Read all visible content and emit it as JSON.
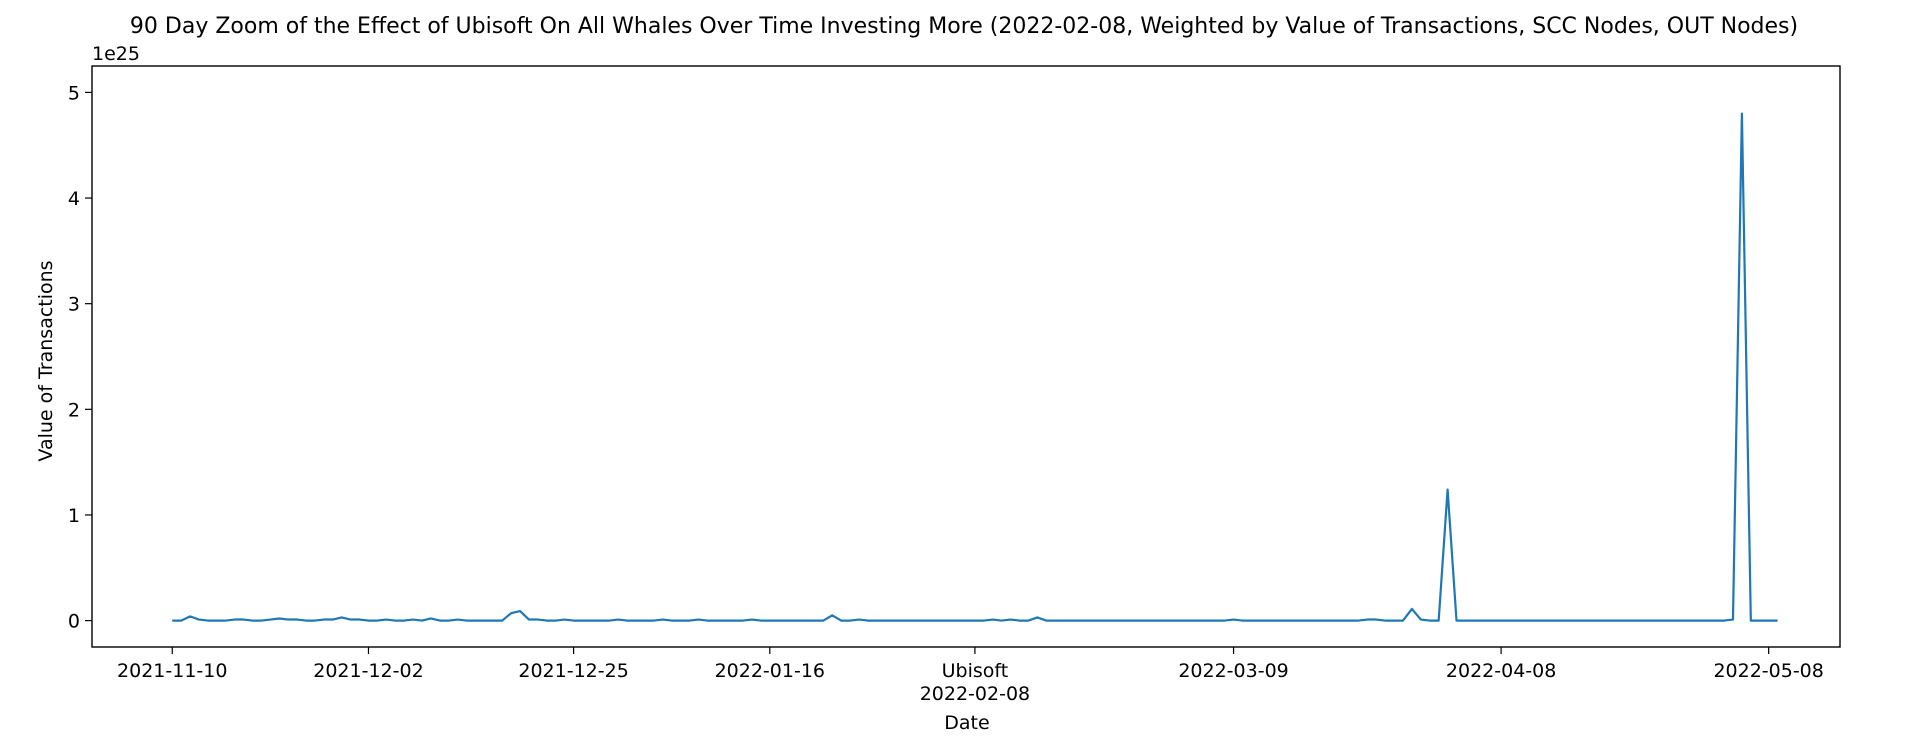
{
  "chart_data": {
    "type": "line",
    "title": "90 Day Zoom of the Effect of Ubisoft On All Whales Over Time Investing More (2022-02-08, Weighted by Value of Transactions, SCC Nodes, OUT Nodes)",
    "xlabel": "Date",
    "ylabel": "Value of Transactions",
    "y_offset_label": "1e25",
    "y_multiplier": 1e+25,
    "ylim": [
      -0.25,
      5.25
    ],
    "xlim": [
      "2021-11-01",
      "2022-05-16"
    ],
    "grid": false,
    "legend": "none",
    "line_color": "#1f77b4",
    "event_label": "Ubisoft",
    "event_date": "2022-02-08",
    "x_ticks": [
      {
        "date": "2021-11-10",
        "label": "2021-11-10"
      },
      {
        "date": "2021-12-02",
        "label": "2021-12-02"
      },
      {
        "date": "2021-12-25",
        "label": "2021-12-25"
      },
      {
        "date": "2022-01-16",
        "label": "2022-01-16"
      },
      {
        "date": "2022-02-08",
        "label": "2022-02-08"
      },
      {
        "date": "2022-03-09",
        "label": "2022-03-09"
      },
      {
        "date": "2022-04-08",
        "label": "2022-04-08"
      },
      {
        "date": "2022-05-08",
        "label": "2022-05-08"
      }
    ],
    "y_ticks": [
      0,
      1,
      2,
      3,
      4,
      5
    ],
    "x": [
      "2021-11-10",
      "2021-11-11",
      "2021-11-12",
      "2021-11-13",
      "2021-11-14",
      "2021-11-15",
      "2021-11-16",
      "2021-11-17",
      "2021-11-18",
      "2021-11-19",
      "2021-11-20",
      "2021-11-21",
      "2021-11-22",
      "2021-11-23",
      "2021-11-24",
      "2021-11-25",
      "2021-11-26",
      "2021-11-27",
      "2021-11-28",
      "2021-11-29",
      "2021-11-30",
      "2021-12-01",
      "2021-12-02",
      "2021-12-03",
      "2021-12-04",
      "2021-12-05",
      "2021-12-06",
      "2021-12-07",
      "2021-12-08",
      "2021-12-09",
      "2021-12-10",
      "2021-12-11",
      "2021-12-12",
      "2021-12-13",
      "2021-12-14",
      "2021-12-15",
      "2021-12-16",
      "2021-12-17",
      "2021-12-18",
      "2021-12-19",
      "2021-12-20",
      "2021-12-21",
      "2021-12-22",
      "2021-12-23",
      "2021-12-24",
      "2021-12-25",
      "2021-12-26",
      "2021-12-27",
      "2021-12-28",
      "2021-12-29",
      "2021-12-30",
      "2021-12-31",
      "2022-01-01",
      "2022-01-02",
      "2022-01-03",
      "2022-01-04",
      "2022-01-05",
      "2022-01-06",
      "2022-01-07",
      "2022-01-08",
      "2022-01-09",
      "2022-01-10",
      "2022-01-11",
      "2022-01-12",
      "2022-01-13",
      "2022-01-14",
      "2022-01-15",
      "2022-01-16",
      "2022-01-17",
      "2022-01-18",
      "2022-01-19",
      "2022-01-20",
      "2022-01-21",
      "2022-01-22",
      "2022-01-23",
      "2022-01-24",
      "2022-01-25",
      "2022-01-26",
      "2022-01-27",
      "2022-01-28",
      "2022-01-29",
      "2022-01-30",
      "2022-01-31",
      "2022-02-01",
      "2022-02-02",
      "2022-02-03",
      "2022-02-04",
      "2022-02-05",
      "2022-02-06",
      "2022-02-07",
      "2022-02-08",
      "2022-02-09",
      "2022-02-10",
      "2022-02-11",
      "2022-02-12",
      "2022-02-13",
      "2022-02-14",
      "2022-02-15",
      "2022-02-16",
      "2022-02-17",
      "2022-02-18",
      "2022-02-19",
      "2022-02-20",
      "2022-02-21",
      "2022-02-22",
      "2022-02-23",
      "2022-02-24",
      "2022-02-25",
      "2022-02-26",
      "2022-02-27",
      "2022-02-28",
      "2022-03-01",
      "2022-03-02",
      "2022-03-03",
      "2022-03-04",
      "2022-03-05",
      "2022-03-06",
      "2022-03-07",
      "2022-03-08",
      "2022-03-09",
      "2022-03-10",
      "2022-03-11",
      "2022-03-12",
      "2022-03-13",
      "2022-03-14",
      "2022-03-15",
      "2022-03-16",
      "2022-03-17",
      "2022-03-18",
      "2022-03-19",
      "2022-03-20",
      "2022-03-21",
      "2022-03-22",
      "2022-03-23",
      "2022-03-24",
      "2022-03-25",
      "2022-03-26",
      "2022-03-27",
      "2022-03-28",
      "2022-03-29",
      "2022-03-30",
      "2022-03-31",
      "2022-04-01",
      "2022-04-02",
      "2022-04-03",
      "2022-04-04",
      "2022-04-05",
      "2022-04-06",
      "2022-04-07",
      "2022-04-08",
      "2022-04-09",
      "2022-04-10",
      "2022-04-11",
      "2022-04-12",
      "2022-04-13",
      "2022-04-14",
      "2022-04-15",
      "2022-04-16",
      "2022-04-17",
      "2022-04-18",
      "2022-04-19",
      "2022-04-20",
      "2022-04-21",
      "2022-04-22",
      "2022-04-23",
      "2022-04-24",
      "2022-04-25",
      "2022-04-26",
      "2022-04-27",
      "2022-04-28",
      "2022-04-29",
      "2022-04-30",
      "2022-05-01",
      "2022-05-02",
      "2022-05-03",
      "2022-05-04",
      "2022-05-05",
      "2022-05-06",
      "2022-05-07",
      "2022-05-08",
      "2022-05-09"
    ],
    "series": [
      {
        "values": [
          0.0,
          0.0,
          0.04,
          0.01,
          0.0,
          0.0,
          0.0,
          0.01,
          0.01,
          0.0,
          0.0,
          0.01,
          0.02,
          0.01,
          0.01,
          0.0,
          0.0,
          0.01,
          0.01,
          0.03,
          0.01,
          0.01,
          0.0,
          0.0,
          0.01,
          0.0,
          0.0,
          0.01,
          0.0,
          0.02,
          0.0,
          0.0,
          0.01,
          0.0,
          0.0,
          0.0,
          0.0,
          0.0,
          0.07,
          0.09,
          0.01,
          0.01,
          0.0,
          0.0,
          0.01,
          0.0,
          0.0,
          0.0,
          0.0,
          0.0,
          0.01,
          0.0,
          0.0,
          0.0,
          0.0,
          0.01,
          0.0,
          0.0,
          0.0,
          0.01,
          0.0,
          0.0,
          0.0,
          0.0,
          0.0,
          0.01,
          0.0,
          0.0,
          0.0,
          0.0,
          0.0,
          0.0,
          0.0,
          0.0,
          0.05,
          0.0,
          0.0,
          0.01,
          0.0,
          0.0,
          0.0,
          0.0,
          0.0,
          0.0,
          0.0,
          0.0,
          0.0,
          0.0,
          0.0,
          0.0,
          0.0,
          0.0,
          0.01,
          0.0,
          0.01,
          0.0,
          0.0,
          0.03,
          0.0,
          0.0,
          0.0,
          0.0,
          0.0,
          0.0,
          0.0,
          0.0,
          0.0,
          0.0,
          0.0,
          0.0,
          0.0,
          0.0,
          0.0,
          0.0,
          0.0,
          0.0,
          0.0,
          0.0,
          0.0,
          0.01,
          0.0,
          0.0,
          0.0,
          0.0,
          0.0,
          0.0,
          0.0,
          0.0,
          0.0,
          0.0,
          0.0,
          0.0,
          0.0,
          0.0,
          0.01,
          0.01,
          0.0,
          0.0,
          0.0,
          0.11,
          0.01,
          0.0,
          0.0,
          1.24,
          0.0,
          0.0,
          0.0,
          0.0,
          0.0,
          0.0,
          0.0,
          0.0,
          0.0,
          0.0,
          0.0,
          0.0,
          0.0,
          0.0,
          0.0,
          0.0,
          0.0,
          0.0,
          0.0,
          0.0,
          0.0,
          0.0,
          0.0,
          0.0,
          0.0,
          0.0,
          0.0,
          0.0,
          0.0,
          0.0,
          0.0,
          0.01,
          4.8,
          0.0,
          0.0,
          0.0,
          0.0
        ]
      }
    ]
  }
}
